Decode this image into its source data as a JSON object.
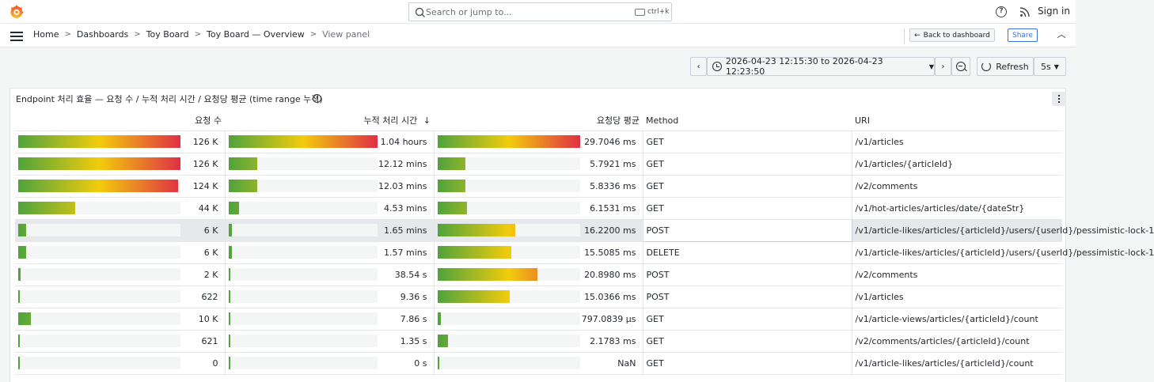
{
  "topbar": {
    "search_placeholder": "Search or jump to...",
    "shortcut": "ctrl+k",
    "signin": "Sign in"
  },
  "nav": {
    "breadcrumbs": [
      "Home",
      "Dashboards",
      "Toy Board",
      "Toy Board — Overview",
      "View panel"
    ],
    "back_label": "Back to dashboard",
    "share_label": "Share"
  },
  "timepicker": {
    "range": "2026-04-23 12:15:30 to 2026-04-23 12:23:50",
    "refresh_label": "Refresh",
    "interval": "5s"
  },
  "panel": {
    "title": "Endpoint 처리 효율 — 요청 수 / 누적 처리 시간 / 요청당 평균 (time range 누적)"
  },
  "table": {
    "columns": [
      "요청 수",
      "누적 처리 시간",
      "요청당 평균",
      "Method",
      "URI"
    ],
    "rows": [
      {
        "count": "126 K",
        "count_frac": 1.0,
        "total": "1.04 hours",
        "total_frac": 1.0,
        "avg": "29.7046 ms",
        "avg_frac": 1.0,
        "method": "GET",
        "uri": "/v1/articles"
      },
      {
        "count": "126 K",
        "count_frac": 1.0,
        "total": "12.12 mins",
        "total_frac": 0.194,
        "avg": "5.7921 ms",
        "avg_frac": 0.195,
        "method": "GET",
        "uri": "/v1/articles/{articleId}"
      },
      {
        "count": "124 K",
        "count_frac": 0.984,
        "total": "12.03 mins",
        "total_frac": 0.193,
        "avg": "5.8336 ms",
        "avg_frac": 0.196,
        "method": "GET",
        "uri": "/v2/comments"
      },
      {
        "count": "44 K",
        "count_frac": 0.349,
        "total": "4.53 mins",
        "total_frac": 0.073,
        "avg": "6.1531 ms",
        "avg_frac": 0.207,
        "method": "GET",
        "uri": "/v1/hot-articles/articles/date/{dateStr}"
      },
      {
        "count": "6 K",
        "count_frac": 0.048,
        "total": "1.65 mins",
        "total_frac": 0.026,
        "avg": "16.2200 ms",
        "avg_frac": 0.546,
        "method": "POST",
        "uri": "/v1/article-likes/articles/{articleId}/users/{userId}/pessimistic-lock-1"
      },
      {
        "count": "6 K",
        "count_frac": 0.048,
        "total": "1.57 mins",
        "total_frac": 0.025,
        "avg": "15.5085 ms",
        "avg_frac": 0.522,
        "method": "DELETE",
        "uri": "/v1/article-likes/articles/{articleId}/users/{userId}/pessimistic-lock-1"
      },
      {
        "count": "2 K",
        "count_frac": 0.016,
        "total": "38.54 s",
        "total_frac": 0.0103,
        "avg": "20.8980 ms",
        "avg_frac": 0.704,
        "method": "POST",
        "uri": "/v2/comments"
      },
      {
        "count": "622",
        "count_frac": 0.005,
        "total": "9.36 s",
        "total_frac": 0.0025,
        "avg": "15.0366 ms",
        "avg_frac": 0.506,
        "method": "POST",
        "uri": "/v1/articles"
      },
      {
        "count": "10 K",
        "count_frac": 0.079,
        "total": "7.86 s",
        "total_frac": 0.0021,
        "avg": "797.0839 µs",
        "avg_frac": 0.027,
        "method": "GET",
        "uri": "/v1/article-views/articles/{articleId}/count"
      },
      {
        "count": "621",
        "count_frac": 0.005,
        "total": "1.35 s",
        "total_frac": 0.0004,
        "avg": "2.1783 ms",
        "avg_frac": 0.073,
        "method": "GET",
        "uri": "/v2/comments/articles/{articleId}/count"
      },
      {
        "count": "0",
        "count_frac": 0.0,
        "total": "0 s",
        "total_frac": 0.0,
        "avg": "NaN",
        "avg_frac": 0.0,
        "method": "GET",
        "uri": "/v1/article-likes/articles/{articleId}/count"
      }
    ]
  },
  "colors": {
    "gradient_low": "#4fa33d",
    "gradient_mid": "#f2cc0c",
    "gradient_high": "#e02f44",
    "link": "#3d71d9"
  }
}
